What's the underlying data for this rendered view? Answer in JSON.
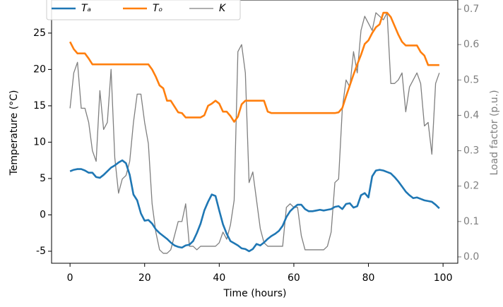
{
  "chart_data": {
    "type": "line",
    "xlabel": "Time (hours)",
    "ylabel": "Temperature (°C)",
    "y2label": "Load factor (p.u.)",
    "x": [
      0,
      1,
      2,
      3,
      4,
      5,
      6,
      7,
      8,
      9,
      10,
      11,
      12,
      13,
      14,
      15,
      16,
      17,
      18,
      19,
      20,
      21,
      22,
      23,
      24,
      25,
      26,
      27,
      28,
      29,
      30,
      31,
      32,
      33,
      34,
      35,
      36,
      37,
      38,
      39,
      40,
      41,
      42,
      43,
      44,
      45,
      46,
      47,
      48,
      49,
      50,
      51,
      52,
      53,
      54,
      55,
      56,
      57,
      58,
      59,
      60,
      61,
      62,
      63,
      64,
      65,
      66,
      67,
      68,
      69,
      70,
      71,
      72,
      73,
      74,
      75,
      76,
      77,
      78,
      79,
      80,
      81,
      82,
      83,
      84,
      85,
      86,
      87,
      88,
      89,
      90,
      91,
      92,
      93,
      94,
      95,
      96,
      97,
      98,
      99
    ],
    "series": [
      {
        "name": "Tₐ",
        "color": "#1f77b4",
        "width": 2.6,
        "axis": "y",
        "values": [
          6.0,
          6.2,
          6.3,
          6.3,
          6.1,
          5.8,
          5.8,
          5.2,
          5.1,
          5.5,
          6.0,
          6.5,
          6.8,
          7.2,
          7.5,
          7.1,
          5.5,
          2.8,
          2.0,
          0.2,
          -0.8,
          -0.7,
          -1.2,
          -2.0,
          -2.5,
          -2.9,
          -3.3,
          -3.8,
          -4.2,
          -4.4,
          -4.5,
          -4.2,
          -4.1,
          -3.6,
          -2.5,
          -1.2,
          0.6,
          1.8,
          2.8,
          2.6,
          0.6,
          -1.3,
          -2.6,
          -3.6,
          -3.9,
          -4.2,
          -4.6,
          -4.7,
          -5.0,
          -4.7,
          -4.0,
          -4.2,
          -3.8,
          -3.3,
          -2.9,
          -2.6,
          -2.2,
          -1.5,
          -0.3,
          0.5,
          1.0,
          1.4,
          1.4,
          0.8,
          0.5,
          0.5,
          0.6,
          0.7,
          0.6,
          0.7,
          0.8,
          1.1,
          1.2,
          0.8,
          1.5,
          1.6,
          1.0,
          1.2,
          2.7,
          3.0,
          2.4,
          5.3,
          6.1,
          6.2,
          6.1,
          5.9,
          5.7,
          5.2,
          4.6,
          3.9,
          3.2,
          2.7,
          2.3,
          2.4,
          2.2,
          2.0,
          1.9,
          1.8,
          1.4,
          0.9
        ]
      },
      {
        "name": "Tₒ",
        "color": "#ff7f0e",
        "width": 2.6,
        "axis": "y",
        "values": [
          23.8,
          22.8,
          22.2,
          22.2,
          22.2,
          21.5,
          20.7,
          20.7,
          20.7,
          20.7,
          20.7,
          20.7,
          20.7,
          20.7,
          20.7,
          20.7,
          20.7,
          20.7,
          20.7,
          20.7,
          20.7,
          20.7,
          20.0,
          19.0,
          17.8,
          17.4,
          15.7,
          15.7,
          14.9,
          14.1,
          14.0,
          13.4,
          13.4,
          13.4,
          13.4,
          13.4,
          13.7,
          15.0,
          15.3,
          15.7,
          15.3,
          14.2,
          14.2,
          13.6,
          12.8,
          13.5,
          15.2,
          15.7,
          15.7,
          15.7,
          15.7,
          15.7,
          15.7,
          14.2,
          14.0,
          14.0,
          14.0,
          14.0,
          14.0,
          14.0,
          14.0,
          14.0,
          14.0,
          14.0,
          14.0,
          14.0,
          14.0,
          14.0,
          14.0,
          14.0,
          14.0,
          14.0,
          14.1,
          14.7,
          16.3,
          17.8,
          19.3,
          20.7,
          22.0,
          23.5,
          24.0,
          25.0,
          25.8,
          26.2,
          27.8,
          27.8,
          27.2,
          26.0,
          24.8,
          23.8,
          23.3,
          23.3,
          23.3,
          23.3,
          22.4,
          21.9,
          20.6,
          20.6,
          20.6,
          20.6
        ]
      },
      {
        "name": "K",
        "color": "#7f7f7f",
        "width": 1.3,
        "axis": "y2",
        "values": [
          0.42,
          0.52,
          0.55,
          0.42,
          0.42,
          0.38,
          0.3,
          0.27,
          0.47,
          0.36,
          0.38,
          0.53,
          0.28,
          0.18,
          0.22,
          0.23,
          0.27,
          0.38,
          0.46,
          0.46,
          0.38,
          0.32,
          0.15,
          0.07,
          0.02,
          0.01,
          0.01,
          0.02,
          0.06,
          0.1,
          0.1,
          0.15,
          0.03,
          0.03,
          0.02,
          0.03,
          0.03,
          0.03,
          0.03,
          0.03,
          0.04,
          0.07,
          0.05,
          0.09,
          0.16,
          0.58,
          0.6,
          0.52,
          0.21,
          0.24,
          0.16,
          0.08,
          0.04,
          0.03,
          0.03,
          0.03,
          0.03,
          0.03,
          0.14,
          0.15,
          0.14,
          0.14,
          0.06,
          0.02,
          0.02,
          0.02,
          0.02,
          0.02,
          0.02,
          0.03,
          0.07,
          0.21,
          0.22,
          0.42,
          0.5,
          0.48,
          0.58,
          0.52,
          0.64,
          0.68,
          0.66,
          0.64,
          0.69,
          0.68,
          0.67,
          0.69,
          0.49,
          0.49,
          0.5,
          0.52,
          0.41,
          0.48,
          0.5,
          0.52,
          0.49,
          0.37,
          0.38,
          0.29,
          0.49,
          0.52
        ]
      }
    ],
    "xlim": [
      -4.95,
      103.95
    ],
    "xticks": [
      0,
      20,
      40,
      60,
      80,
      100
    ],
    "ylim": [
      -6.65,
      29.55
    ],
    "yticks": [
      -5,
      0,
      5,
      10,
      15,
      20,
      25
    ],
    "y2lim": [
      -0.018,
      0.726
    ],
    "y2ticks": [
      {
        "value": 0,
        "label": "0.0"
      },
      0.1,
      0.2,
      0.3,
      0.4,
      0.5,
      0.6,
      0.7
    ],
    "y2color": "#7f7f7f",
    "legend": "upper left"
  }
}
